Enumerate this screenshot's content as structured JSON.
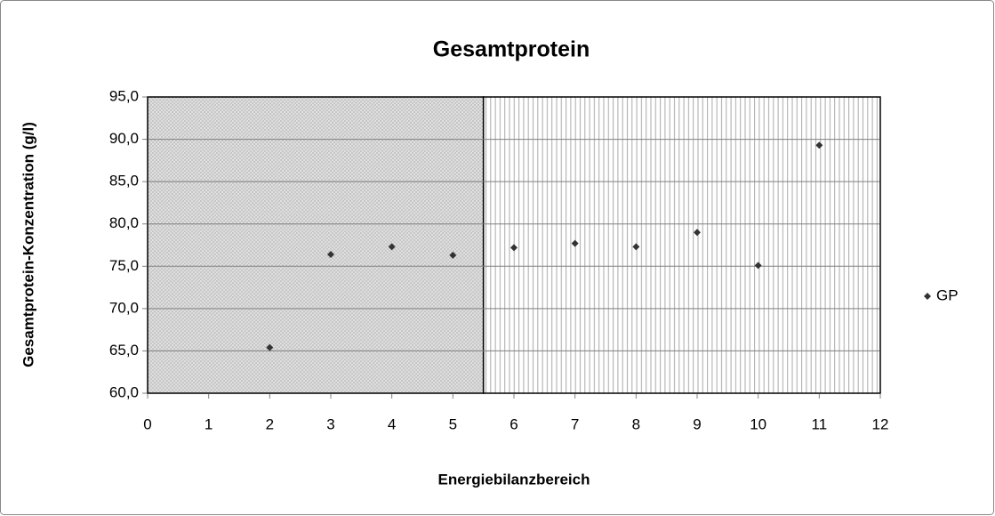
{
  "chart_data": {
    "type": "scatter",
    "title": "Gesamtprotein",
    "x_label": "Energiebilanzbereich",
    "y_label": "Gesamtprotein-Konzentration (g/l)",
    "series": [
      {
        "name": "GP",
        "color": "#333333",
        "marker": "diamond",
        "x": [
          2,
          3,
          4,
          5,
          6,
          7,
          8,
          9,
          10,
          11
        ],
        "values": [
          65.4,
          76.4,
          77.3,
          76.3,
          77.2,
          77.7,
          77.3,
          79.0,
          75.1,
          89.3
        ]
      }
    ],
    "xlim": [
      0,
      12
    ],
    "xticks": [
      0,
      1,
      2,
      3,
      4,
      5,
      6,
      7,
      8,
      9,
      10,
      11,
      12
    ],
    "ylim": [
      60,
      95
    ],
    "yticks": [
      {
        "value": 60,
        "label": "60,0"
      },
      {
        "value": 65,
        "label": "65,0"
      },
      {
        "value": 70,
        "label": "70,0"
      },
      {
        "value": 75,
        "label": "75,0"
      },
      {
        "value": 80,
        "label": "80,0"
      },
      {
        "value": 85,
        "label": "85,0"
      },
      {
        "value": 90,
        "label": "90,0"
      },
      {
        "value": 95,
        "label": "95,0"
      }
    ],
    "bands": [
      {
        "range": [
          0,
          5.5
        ],
        "pattern": "crosshatch"
      },
      {
        "range": [
          5.5,
          12
        ],
        "pattern": "vstripes"
      }
    ],
    "grid": true,
    "legend": "right"
  }
}
